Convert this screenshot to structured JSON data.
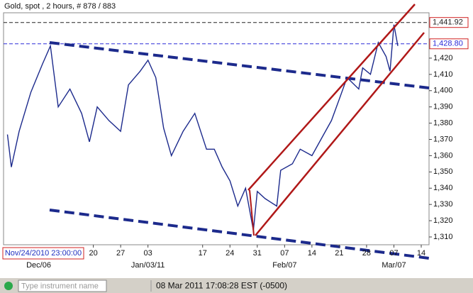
{
  "chart_data": {
    "type": "line",
    "title": "Gold, spot , 2 hours, # 878 / 883",
    "cursor_label": "Nov/24/2010 23:00:00",
    "x": [
      "2010-11-28",
      "2010-11-29",
      "2010-12-01",
      "2010-12-04",
      "2010-12-07",
      "2010-12-09",
      "2010-12-11",
      "2010-12-14",
      "2010-12-17",
      "2010-12-19",
      "2010-12-21",
      "2010-12-24",
      "2010-12-27",
      "2010-12-29",
      "2011-01-01",
      "2011-01-03",
      "2011-01-05",
      "2011-01-07",
      "2011-01-09",
      "2011-01-12",
      "2011-01-15",
      "2011-01-18",
      "2011-01-20",
      "2011-01-22",
      "2011-01-24",
      "2011-01-26",
      "2011-01-28",
      "2011-01-30",
      "2011-01-31",
      "2011-02-02",
      "2011-02-05",
      "2011-02-06",
      "2011-02-09",
      "2011-02-11",
      "2011-02-14",
      "2011-02-17",
      "2011-02-19",
      "2011-02-21",
      "2011-02-23",
      "2011-02-26",
      "2011-02-27",
      "2011-03-01",
      "2011-03-03",
      "2011-03-05",
      "2011-03-06",
      "2011-03-07",
      "2011-03-08"
    ],
    "series": [
      {
        "color": "#1c2a8c",
        "values": [
          1373,
          1353,
          1375,
          1399,
          1416.5,
          1427.5,
          1390,
          1401,
          1386,
          1368.5,
          1390,
          1381.6,
          1375,
          1403.5,
          1412,
          1418.7,
          1408,
          1377,
          1360,
          1375,
          1386,
          1364,
          1364,
          1353,
          1344.5,
          1329,
          1340,
          1314,
          1338,
          1333.6,
          1329,
          1351,
          1355,
          1364,
          1360,
          1373,
          1381.6,
          1394.7,
          1408,
          1401,
          1414,
          1410,
          1429.6,
          1421,
          1412,
          1440.6,
          1427.5
        ]
      }
    ],
    "xlim": [
      "2010-11-27",
      "2011-03-16"
    ],
    "xticks": [
      {
        "value": "2010-12-20",
        "label": "20"
      },
      {
        "value": "2010-12-27",
        "label": "27"
      },
      {
        "value": "2011-01-03",
        "label": "03"
      },
      {
        "value": "2011-01-17",
        "label": "17"
      },
      {
        "value": "2011-01-24",
        "label": "24"
      },
      {
        "value": "2011-01-31",
        "label": "31"
      },
      {
        "value": "2011-02-07",
        "label": "07"
      },
      {
        "value": "2011-02-14",
        "label": "14"
      },
      {
        "value": "2011-02-21",
        "label": "21"
      },
      {
        "value": "2011-02-28",
        "label": "28"
      },
      {
        "value": "2011-03-07",
        "label": "07"
      },
      {
        "value": "2011-03-14",
        "label": "14"
      }
    ],
    "xticks_month": [
      {
        "value": "2010-12-06",
        "label": "Dec/06"
      },
      {
        "value": "2011-01-03",
        "label": "Jan/03/11"
      },
      {
        "value": "2011-02-07",
        "label": "Feb/07"
      },
      {
        "value": "2011-03-07",
        "label": "Mar/07"
      }
    ],
    "ylim": [
      1305.2,
      1447.9
    ],
    "yticks": [
      {
        "value": 1310,
        "label": "1,310"
      },
      {
        "value": 1320,
        "label": "1,320"
      },
      {
        "value": 1330,
        "label": "1,330"
      },
      {
        "value": 1340,
        "label": "1,340"
      },
      {
        "value": 1350,
        "label": "1,350"
      },
      {
        "value": 1360,
        "label": "1,360"
      },
      {
        "value": 1370,
        "label": "1,370"
      },
      {
        "value": 1380,
        "label": "1,380"
      },
      {
        "value": 1390,
        "label": "1,390"
      },
      {
        "value": 1400,
        "label": "1,400"
      },
      {
        "value": 1410,
        "label": "1,410"
      },
      {
        "value": 1420,
        "label": "1,420"
      }
    ],
    "price_lines": [
      {
        "value": 1441.92,
        "label": "1,441.92",
        "color": "#222222"
      },
      {
        "value": 1428.8,
        "label": "1,428.80",
        "color": "#2b2bd9"
      }
    ]
  },
  "status_bar": {
    "search_placeholder": "Type instrument name",
    "clock": "08 Mar 2011 17:08:28 EST (-0500)"
  }
}
